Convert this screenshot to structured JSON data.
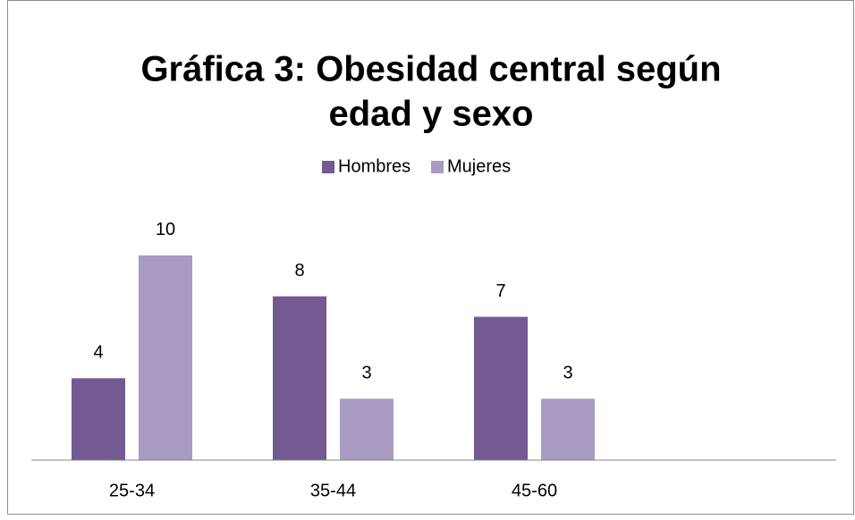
{
  "chart_data": {
    "type": "bar",
    "title": [
      "Gráfica 3: Obesidad central según",
      "edad y sexo"
    ],
    "categories": [
      "25-34",
      "35-44",
      "45-60",
      null
    ],
    "series": [
      {
        "name": "Hombres",
        "color": "#745a92",
        "values": [
          4,
          8,
          7,
          null
        ]
      },
      {
        "name": "Mujeres",
        "color": "#a99bc1",
        "values": [
          10,
          3,
          3,
          null
        ]
      }
    ],
    "ylim": [
      0,
      12
    ],
    "legend": "top"
  }
}
